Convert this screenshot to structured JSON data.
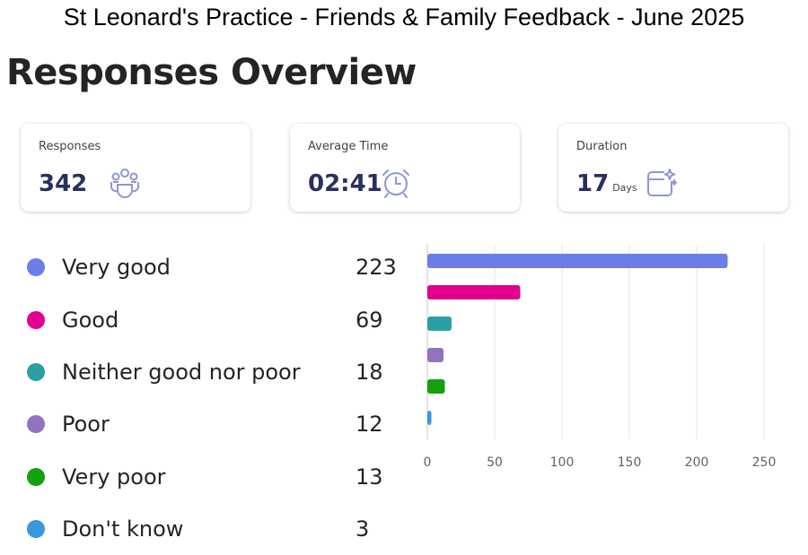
{
  "page_title": "St Leonard's Practice - Friends & Family Feedback - June 2025",
  "section_title": "Responses Overview",
  "cards": [
    {
      "label": "Responses",
      "value": "342",
      "unit": "",
      "icon": "people-icon"
    },
    {
      "label": "Average Time",
      "value": "02:41",
      "unit": "",
      "icon": "alarm-clock-icon"
    },
    {
      "label": "Duration",
      "value": "17",
      "unit": "Days",
      "icon": "calendar-sparkle-icon"
    }
  ],
  "colors": {
    "Very good": "#6b7de8",
    "Good": "#e3008c",
    "Neither good nor poor": "#2aa0a4",
    "Poor": "#9373c0",
    "Very poor": "#13a10e",
    "Don't know": "#3a96dd",
    "icon": "#8f96d6",
    "accent": "#283060"
  },
  "chart_data": {
    "type": "bar",
    "orientation": "horizontal",
    "categories": [
      "Very good",
      "Good",
      "Neither good nor poor",
      "Poor",
      "Very poor",
      "Don't know"
    ],
    "values": [
      223,
      69,
      18,
      12,
      13,
      3
    ],
    "xticks": [
      "0",
      "50",
      "100",
      "150",
      "200",
      "250"
    ],
    "xlim": [
      0,
      250
    ],
    "grid": true,
    "title": "",
    "xlabel": "",
    "ylabel": ""
  }
}
